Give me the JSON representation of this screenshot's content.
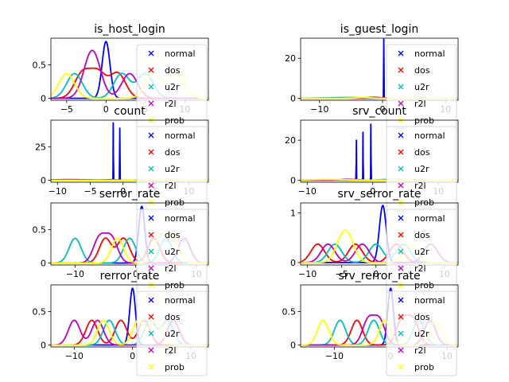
{
  "chart_data": [
    {
      "type": "line",
      "title": "is_host_login",
      "xlim": [
        -7,
        13
      ],
      "ylim": [
        -0.03,
        0.9
      ],
      "xticks": [
        -5,
        0,
        5,
        10
      ],
      "yticks": [
        0.0,
        0.5
      ],
      "legend_placement": "right",
      "series": [
        {
          "name": "normal",
          "color": "#0000ff",
          "peaks": [
            [
              0,
              0.85,
              0.5
            ]
          ]
        },
        {
          "name": "dos",
          "color": "#ff0000",
          "peaks": [
            [
              -3,
              0.37,
              1
            ],
            [
              -1,
              0.37,
              1
            ],
            [
              1.5,
              0.37,
              1
            ]
          ]
        },
        {
          "name": "u2r",
          "color": "#00bfbf",
          "peaks": [
            [
              -4,
              0.37,
              1
            ],
            [
              2,
              0.37,
              1
            ],
            [
              5,
              0.37,
              1
            ]
          ]
        },
        {
          "name": "r2l",
          "color": "#bf00bf",
          "peaks": [
            [
              -2,
              0.37,
              1
            ],
            [
              -1.5,
              0.37,
              1
            ],
            [
              3,
              0.37,
              1
            ]
          ]
        },
        {
          "name": "prob",
          "color": "#ffff00",
          "peaks": [
            [
              -5,
              0.37,
              1
            ],
            [
              6,
              0.37,
              1
            ],
            [
              9,
              0.37,
              1
            ]
          ]
        }
      ]
    },
    {
      "type": "line",
      "title": "is_guest_login",
      "xlim": [
        -13,
        12
      ],
      "ylim": [
        -1,
        30
      ],
      "xticks": [
        -10,
        0,
        10
      ],
      "yticks": [
        0,
        20
      ],
      "legend_placement": "right",
      "series": [
        {
          "name": "normal",
          "color": "#0000ff",
          "peaks": [
            [
              0.2,
              30,
              0.015
            ]
          ]
        },
        {
          "name": "dos",
          "color": "#ff0000",
          "peaks": [
            [
              -1,
              0.4,
              1
            ]
          ]
        },
        {
          "name": "u2r",
          "color": "#00bfbf",
          "peaks": [
            [
              -6,
              0.4,
              3
            ]
          ]
        },
        {
          "name": "r2l",
          "color": "#bf00bf",
          "peaks": [
            [
              -1.5,
              0.5,
              1
            ]
          ]
        },
        {
          "name": "prob",
          "color": "#ffff00",
          "peaks": [
            [
              -3,
              0.4,
              1
            ]
          ]
        }
      ]
    },
    {
      "type": "line",
      "title": "count",
      "xlim": [
        -11,
        13
      ],
      "ylim": [
        -1.5,
        45
      ],
      "xticks": [
        -10,
        -5,
        0,
        5,
        10
      ],
      "yticks": [
        0,
        25
      ],
      "legend_placement": "right",
      "series": [
        {
          "name": "normal",
          "color": "#0000ff",
          "peaks": [
            [
              -1.5,
              43,
              0.02
            ],
            [
              -0.5,
              39,
              0.02
            ]
          ]
        },
        {
          "name": "dos",
          "color": "#ff0000",
          "peaks": [
            [
              -2,
              0.4,
              1
            ]
          ]
        },
        {
          "name": "u2r",
          "color": "#00bfbf",
          "peaks": [
            [
              3,
              0.4,
              1
            ]
          ]
        },
        {
          "name": "r2l",
          "color": "#bf00bf",
          "peaks": [
            [
              -8,
              0.5,
              3
            ]
          ]
        },
        {
          "name": "prob",
          "color": "#ffff00",
          "peaks": [
            [
              4,
              0.4,
              1
            ]
          ]
        }
      ]
    },
    {
      "type": "line",
      "title": "srv_count",
      "xlim": [
        -11,
        13
      ],
      "ylim": [
        -1,
        30
      ],
      "xticks": [
        -10,
        0,
        10
      ],
      "yticks": [
        0,
        20
      ],
      "legend_placement": "right",
      "series": [
        {
          "name": "normal",
          "color": "#0000ff",
          "peaks": [
            [
              -2.5,
              20,
              0.02
            ],
            [
              -1.5,
              24,
              0.02
            ],
            [
              -0.3,
              28,
              0.02
            ]
          ]
        },
        {
          "name": "dos",
          "color": "#ff0000",
          "peaks": [
            [
              -3,
              0.4,
              1
            ]
          ]
        },
        {
          "name": "u2r",
          "color": "#00bfbf",
          "peaks": [
            [
              2,
              0.4,
              1
            ]
          ]
        },
        {
          "name": "r2l",
          "color": "#bf00bf",
          "peaks": [
            [
              -4,
              0.5,
              1
            ]
          ]
        },
        {
          "name": "prob",
          "color": "#ffff00",
          "peaks": [
            [
              -7,
              0.4,
              3
            ]
          ]
        }
      ]
    },
    {
      "type": "line",
      "title": "serror_rate",
      "xlim": [
        -14,
        12
      ],
      "ylim": [
        -0.03,
        0.9
      ],
      "xticks": [
        -10,
        0,
        10
      ],
      "yticks": [
        0.0,
        0.5
      ],
      "legend_placement": "right",
      "series": [
        {
          "name": "normal",
          "color": "#0000ff",
          "peaks": [
            [
              1,
              0.85,
              0.5
            ]
          ]
        },
        {
          "name": "dos",
          "color": "#ff0000",
          "peaks": [
            [
              -5,
              0.37,
              1
            ],
            [
              -2,
              0.37,
              1
            ],
            [
              3,
              0.37,
              1
            ]
          ]
        },
        {
          "name": "u2r",
          "color": "#00bfbf",
          "peaks": [
            [
              -10,
              0.37,
              1
            ],
            [
              -1,
              0.37,
              1
            ],
            [
              5,
              0.37,
              1
            ]
          ]
        },
        {
          "name": "r2l",
          "color": "#bf00bf",
          "peaks": [
            [
              -6,
              0.37,
              1
            ],
            [
              -4,
              0.37,
              1
            ],
            [
              8,
              0.37,
              1
            ]
          ]
        },
        {
          "name": "prob",
          "color": "#ffff00",
          "peaks": [
            [
              -3,
              0.37,
              1
            ],
            [
              4,
              0.37,
              1
            ],
            [
              6,
              0.37,
              1
            ]
          ]
        }
      ]
    },
    {
      "type": "line",
      "title": "srv_serror_rate",
      "xlim": [
        -11,
        12
      ],
      "ylim": [
        -0.05,
        1.2
      ],
      "xticks": [
        -10,
        -5,
        0,
        5,
        10
      ],
      "yticks": [
        0,
        1
      ],
      "legend_placement": "right",
      "series": [
        {
          "name": "normal",
          "color": "#0000ff",
          "peaks": [
            [
              1,
              1.15,
              0.5
            ]
          ]
        },
        {
          "name": "dos",
          "color": "#ff0000",
          "peaks": [
            [
              -8.5,
              0.37,
              1
            ],
            [
              -3,
              0.37,
              1
            ],
            [
              3,
              0.37,
              1
            ]
          ]
        },
        {
          "name": "u2r",
          "color": "#00bfbf",
          "peaks": [
            [
              -6,
              0.37,
              1
            ],
            [
              0,
              0.37,
              1
            ],
            [
              4,
              0.37,
              1
            ]
          ]
        },
        {
          "name": "r2l",
          "color": "#bf00bf",
          "peaks": [
            [
              -7,
              0.37,
              1
            ],
            [
              -2,
              0.37,
              1
            ],
            [
              8,
              0.37,
              1
            ]
          ]
        },
        {
          "name": "prob",
          "color": "#ffff00",
          "peaks": [
            [
              -5,
              0.37,
              1
            ],
            [
              -4,
              0.37,
              1
            ],
            [
              5,
              0.37,
              1
            ]
          ]
        }
      ]
    },
    {
      "type": "line",
      "title": "rerror_rate",
      "xlim": [
        -14,
        13
      ],
      "ylim": [
        -0.03,
        0.9
      ],
      "xticks": [
        -10,
        0,
        10
      ],
      "yticks": [
        0.0,
        0.5
      ],
      "legend_placement": "right",
      "series": [
        {
          "name": "normal",
          "color": "#0000ff",
          "peaks": [
            [
              0,
              0.85,
              0.5
            ]
          ]
        },
        {
          "name": "dos",
          "color": "#ff0000",
          "peaks": [
            [
              -7,
              0.37,
              1
            ],
            [
              -2,
              0.37,
              1
            ],
            [
              2,
              0.37,
              1
            ]
          ]
        },
        {
          "name": "u2r",
          "color": "#00bfbf",
          "peaks": [
            [
              -4,
              0.37,
              1
            ],
            [
              3,
              0.37,
              1
            ],
            [
              6,
              0.37,
              1
            ]
          ]
        },
        {
          "name": "r2l",
          "color": "#bf00bf",
          "peaks": [
            [
              -10,
              0.37,
              1
            ],
            [
              -6,
              0.37,
              1
            ],
            [
              7,
              0.37,
              1
            ]
          ]
        },
        {
          "name": "prob",
          "color": "#ffff00",
          "peaks": [
            [
              -5,
              0.37,
              1
            ],
            [
              1,
              0.37,
              1
            ],
            [
              4,
              0.37,
              1
            ]
          ]
        }
      ]
    },
    {
      "type": "line",
      "title": "srv_rerror_rate",
      "xlim": [
        -16,
        12
      ],
      "ylim": [
        -0.03,
        0.9
      ],
      "xticks": [
        -10,
        0,
        10
      ],
      "yticks": [
        0.0,
        0.5
      ],
      "legend_placement": "right",
      "series": [
        {
          "name": "normal",
          "color": "#0000ff",
          "peaks": [
            [
              0,
              0.85,
              0.5
            ]
          ]
        },
        {
          "name": "dos",
          "color": "#ff0000",
          "peaks": [
            [
              -6,
              0.37,
              1
            ],
            [
              2,
              0.37,
              1
            ],
            [
              4,
              0.37,
              1
            ]
          ]
        },
        {
          "name": "u2r",
          "color": "#00bfbf",
          "peaks": [
            [
              -9,
              0.37,
              1
            ],
            [
              -3,
              0.37,
              1
            ],
            [
              5,
              0.37,
              1
            ]
          ]
        },
        {
          "name": "r2l",
          "color": "#bf00bf",
          "peaks": [
            [
              -4,
              0.37,
              1
            ],
            [
              -2,
              0.37,
              1
            ],
            [
              7,
              0.37,
              1
            ]
          ]
        },
        {
          "name": "prob",
          "color": "#ffff00",
          "peaks": [
            [
              -12,
              0.37,
              1
            ],
            [
              -1,
              0.37,
              1
            ],
            [
              8,
              0.37,
              1
            ]
          ]
        }
      ]
    }
  ]
}
